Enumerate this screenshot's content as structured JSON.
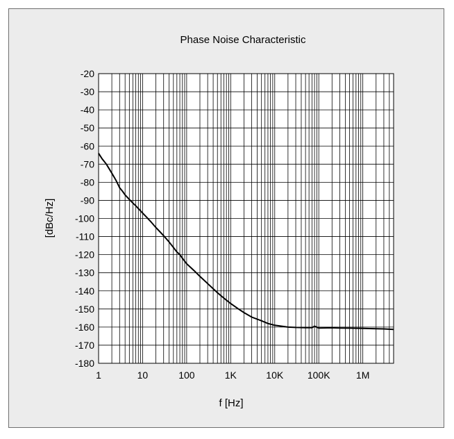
{
  "chart_data": {
    "type": "line",
    "title": "Phase Noise Characteristic",
    "xlabel": "f [Hz]",
    "ylabel": "[dBc/Hz]",
    "x_scale": "log",
    "xlim": [
      1,
      5000000
    ],
    "ylim": [
      -180,
      -20
    ],
    "grid": true,
    "x_ticks": [
      1,
      10,
      100,
      1000,
      10000,
      100000,
      1000000
    ],
    "x_tick_labels": [
      "1",
      "10",
      "100",
      "1K",
      "10K",
      "100K",
      "1M"
    ],
    "y_ticks": [
      -20,
      -30,
      -40,
      -50,
      -60,
      -70,
      -80,
      -90,
      -100,
      -110,
      -120,
      -130,
      -140,
      -150,
      -160,
      -170,
      -180
    ],
    "y_tick_labels": [
      "-20",
      "-30",
      "-40",
      "-50",
      "-60",
      "-70",
      "-80",
      "-90",
      "-100",
      "-110",
      "-120",
      "-130",
      "-140",
      "-150",
      "-160",
      "-170",
      "-180"
    ],
    "colors": {
      "frame_bg": "#ececec",
      "plot_bg": "#ffffff",
      "grid": "#000000",
      "line": "#000000"
    },
    "series": [
      {
        "x": [
          1,
          1.2,
          1.5,
          2,
          2.5,
          3,
          3.5,
          4,
          5,
          6,
          7,
          8,
          10,
          12,
          15,
          20,
          25,
          30,
          40,
          50,
          60,
          70,
          80,
          100,
          150,
          200,
          300,
          500,
          700,
          1000,
          1500,
          2000,
          3000,
          5000,
          7000,
          10000,
          20000,
          30000,
          50000,
          70000,
          80000,
          100000,
          200000,
          300000,
          500000,
          1000000,
          2000000,
          3000000,
          5000000
        ],
        "y": [
          -64,
          -67,
          -70,
          -75,
          -79,
          -83,
          -85,
          -87,
          -89.5,
          -91.5,
          -93,
          -94.5,
          -97,
          -99,
          -101.5,
          -105,
          -107.5,
          -109.5,
          -113,
          -116,
          -118.5,
          -120,
          -122,
          -125,
          -129,
          -132,
          -136,
          -141,
          -144,
          -147,
          -150,
          -152,
          -154.5,
          -156.5,
          -158,
          -159,
          -160,
          -160.2,
          -160.3,
          -160.3,
          -159.5,
          -160.5,
          -160.4,
          -160.5,
          -160.6,
          -160.7,
          -160.9,
          -161,
          -161.3
        ]
      }
    ]
  }
}
